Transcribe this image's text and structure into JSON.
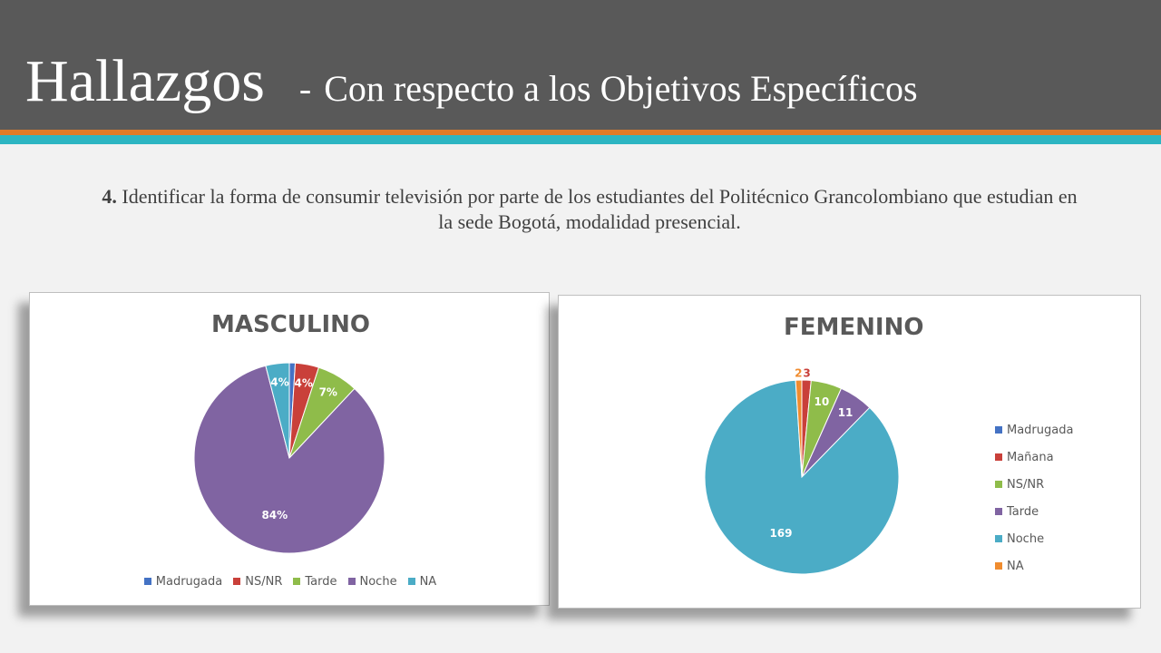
{
  "header": {
    "title": "Hallazgos",
    "dash": "-",
    "subtitle": "Con respecto a los Objetivos Específicos"
  },
  "objective": {
    "number": "4.",
    "text": "Identificar la forma de consumir televisión por parte de los estudiantes del Politécnico Grancolombiano que estudian en la sede Bogotá, modalidad presencial."
  },
  "chart_data": [
    {
      "type": "pie",
      "title": "MASCULINO",
      "categories": [
        "Madrugada",
        "NS/NR",
        "Tarde",
        "Noche",
        "NA"
      ],
      "values": [
        1,
        4,
        7,
        84,
        4
      ],
      "labels": [
        "1%",
        "4%",
        "7%",
        "84%",
        "4%"
      ],
      "colors": [
        "#4472c4",
        "#c9403a",
        "#8fbc4a",
        "#8064a2",
        "#4bacc6"
      ],
      "legend": "bottom"
    },
    {
      "type": "pie",
      "title": "FEMENINO",
      "categories": [
        "Madrugada",
        "Mañana",
        "NS/NR",
        "Tarde",
        "Noche",
        "NA"
      ],
      "values": [
        0,
        3,
        10,
        11,
        169,
        2
      ],
      "labels": [
        "",
        "3",
        "10",
        "11",
        "169",
        "2"
      ],
      "colors": [
        "#4472c4",
        "#c9403a",
        "#8fbc4a",
        "#8064a2",
        "#4bacc6",
        "#f08c2f"
      ],
      "legend": "right"
    }
  ]
}
